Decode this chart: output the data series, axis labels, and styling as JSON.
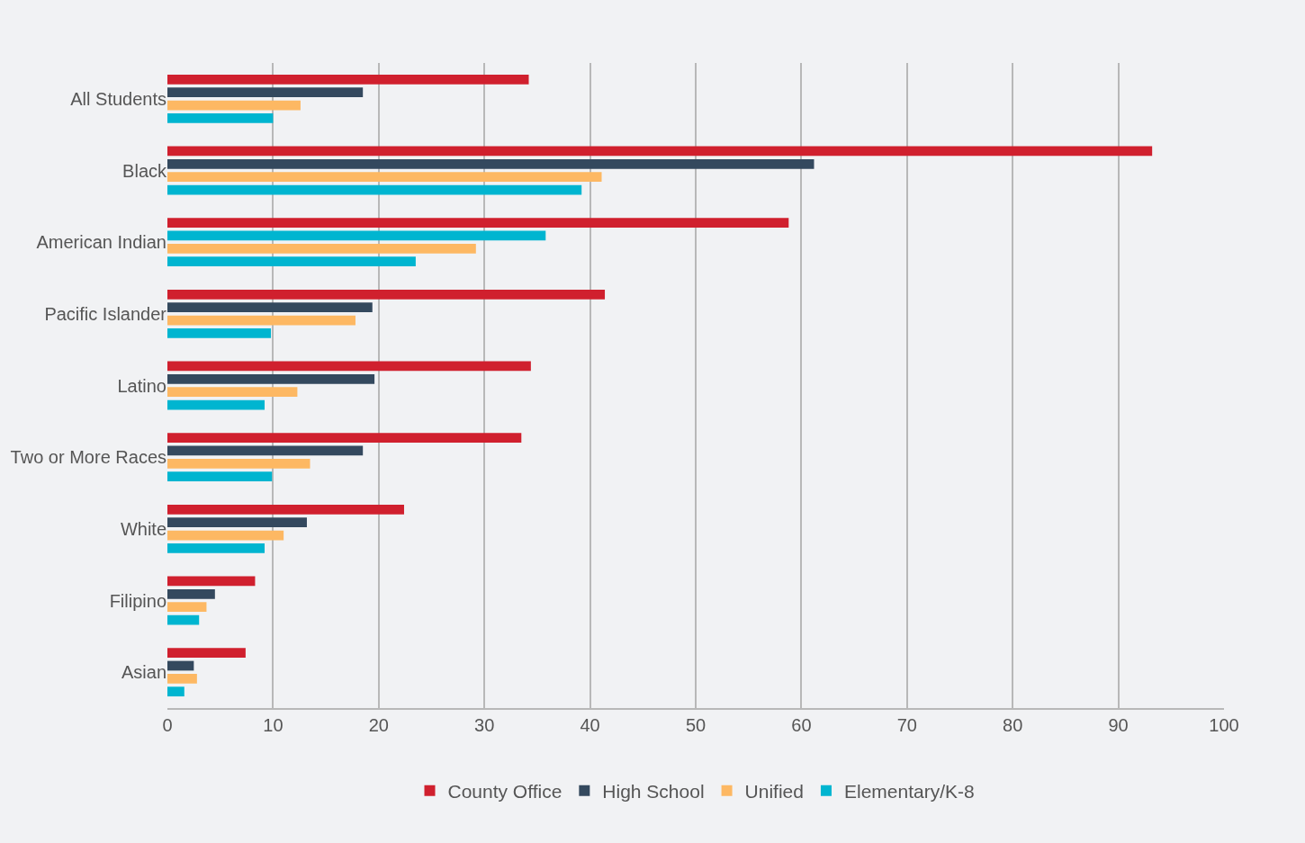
{
  "chart_data": {
    "type": "bar",
    "orientation": "horizontal",
    "categories": [
      "All Students",
      "Black",
      "American Indian",
      "Pacific Islander",
      "Latino",
      "Two or More Races",
      "White",
      "Filipino",
      "Asian"
    ],
    "series": [
      {
        "name": "County Office",
        "color": "#d0202e",
        "values": [
          34.2,
          93.2,
          58.8,
          41.4,
          34.4,
          33.5,
          22.4,
          8.3,
          7.4
        ]
      },
      {
        "name": "High School",
        "color": "#34495e",
        "colors": [
          "#34495e",
          "#34495e",
          "#00b5d0",
          "#34495e",
          "#34495e",
          "#34495e",
          "#34495e",
          "#34495e",
          "#34495e"
        ],
        "values": [
          18.5,
          61.2,
          35.8,
          19.4,
          19.6,
          18.5,
          13.2,
          4.5,
          2.5
        ]
      },
      {
        "name": "Unified",
        "color": "#fdb863",
        "values": [
          12.6,
          41.1,
          29.2,
          17.8,
          12.3,
          13.5,
          11.0,
          3.7,
          2.8
        ]
      },
      {
        "name": "Elementary/K-8",
        "color": "#00b5d0",
        "values": [
          10.0,
          39.2,
          23.5,
          9.8,
          9.2,
          9.9,
          9.2,
          3.0,
          1.6
        ]
      }
    ],
    "xlim": [
      0,
      100
    ],
    "xticks": [
      0,
      10,
      20,
      30,
      40,
      50,
      60,
      70,
      80,
      90,
      100
    ],
    "grid": "x",
    "legend": "bottom"
  }
}
